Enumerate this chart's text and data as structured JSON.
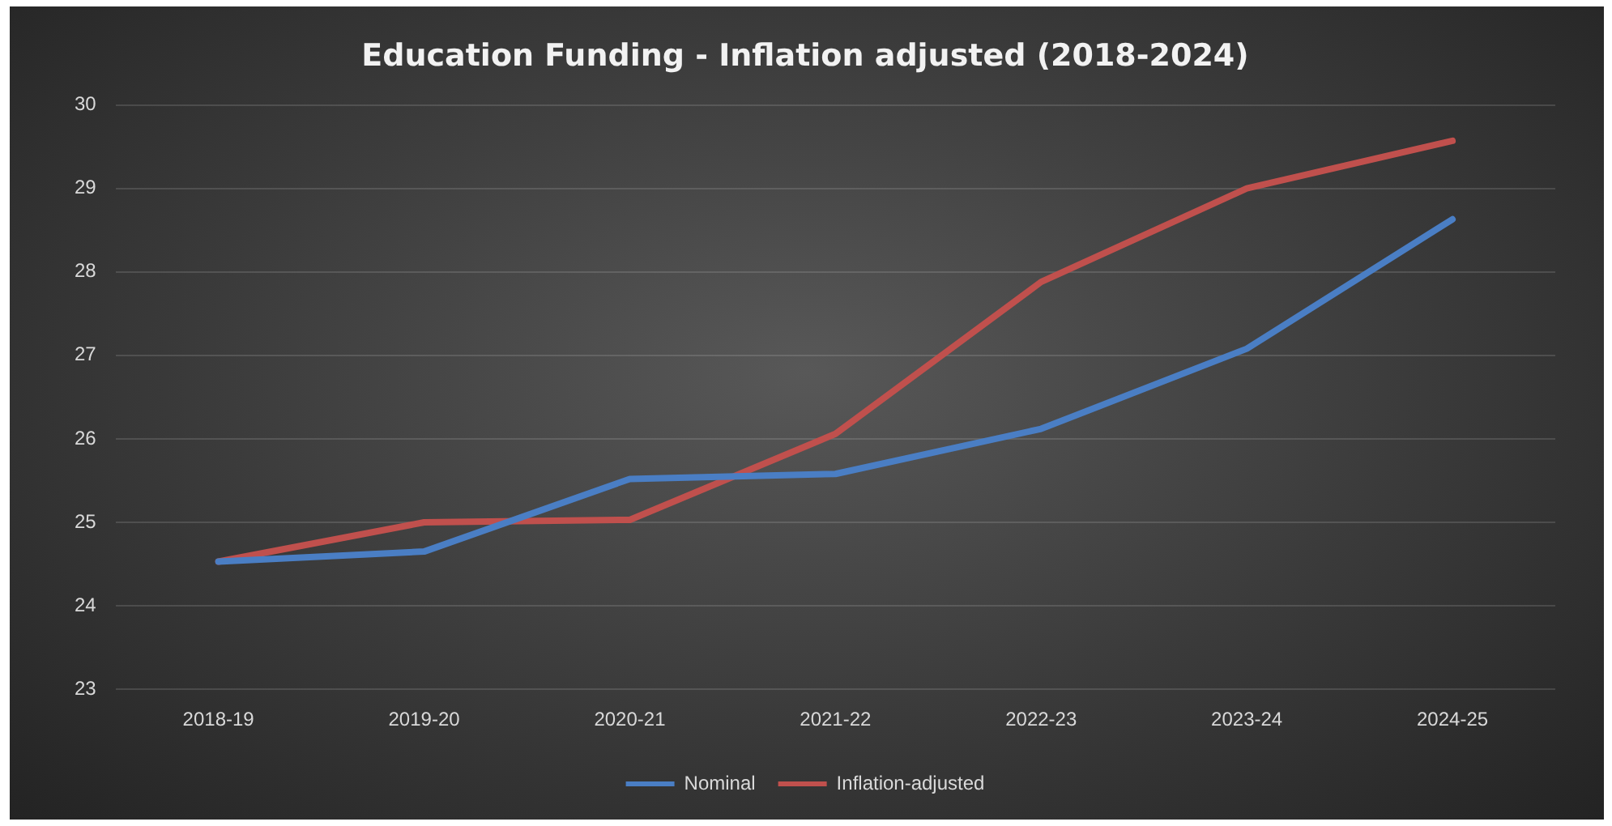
{
  "chart_data": {
    "type": "line",
    "title": "Education Funding - Inflation adjusted (2018-2024)",
    "categories": [
      "2018-19",
      "2019-20",
      "2020-21",
      "2021-22",
      "2022-23",
      "2023-24",
      "2024-25"
    ],
    "series": [
      {
        "name": "Nominal",
        "color": "#4a7ec4",
        "values": [
          24.53,
          24.65,
          25.52,
          25.58,
          26.12,
          27.08,
          28.63
        ]
      },
      {
        "name": "Inflation-adjusted",
        "color": "#c0504d",
        "values": [
          24.53,
          25.0,
          25.03,
          26.06,
          27.88,
          29.0,
          29.57
        ]
      }
    ],
    "ylim": [
      23,
      30
    ],
    "yticks": [
      23,
      24,
      25,
      26,
      27,
      28,
      29,
      30
    ],
    "grid": "y",
    "legend": "bottom",
    "marker": "none",
    "line_style": "solid"
  }
}
